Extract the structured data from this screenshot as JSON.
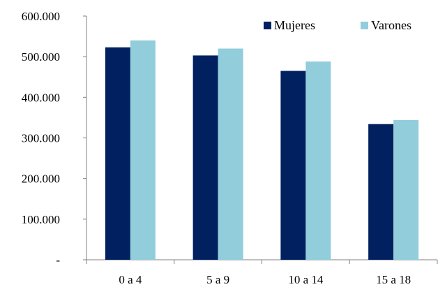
{
  "chart_data": {
    "type": "bar",
    "categories": [
      "0 a 4",
      "5 a 9",
      "10 a 14",
      "15 a 18"
    ],
    "series": [
      {
        "name": "Mujeres",
        "values": [
          523000,
          503000,
          465000,
          334000
        ],
        "color": "#002060"
      },
      {
        "name": "Varones",
        "values": [
          540000,
          520000,
          488000,
          344000
        ],
        "color": "#92CDDC"
      }
    ],
    "yticks": [
      {
        "value": 0,
        "label": "-"
      },
      {
        "value": 100000,
        "label": "100.000"
      },
      {
        "value": 200000,
        "label": "200.000"
      },
      {
        "value": 300000,
        "label": "300.000"
      },
      {
        "value": 400000,
        "label": "400.000"
      },
      {
        "value": 500000,
        "label": "500.000"
      },
      {
        "value": 600000,
        "label": "600.000"
      }
    ],
    "ylim": [
      0,
      600000
    ],
    "grid": false,
    "legend_position": "top-right",
    "title": "",
    "xlabel": "",
    "ylabel": ""
  }
}
